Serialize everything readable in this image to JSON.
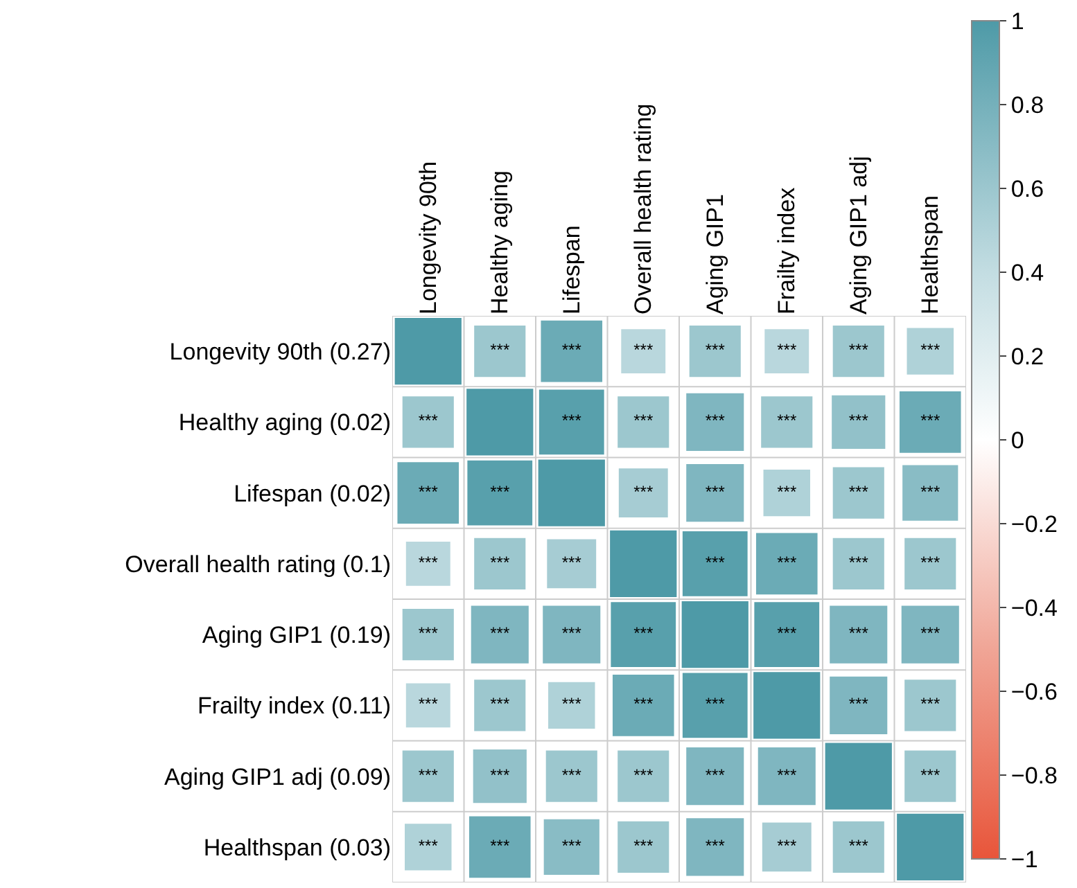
{
  "chart_data": {
    "type": "heatmap",
    "categories": [
      "Longevity 90th",
      "Healthy aging",
      "Lifespan",
      "Overall health rating",
      "Aging GIP1",
      "Frailty index",
      "Aging GIP1 adj",
      "Healthspan"
    ],
    "y_categories": [
      "Longevity 90th (0.27)",
      "Healthy aging (0.02)",
      "Lifespan (0.02)",
      "Overall health rating (0.1)",
      "Aging GIP1 (0.19)",
      "Frailty index (0.11)",
      "Aging GIP1 adj (0.09)",
      "Healthspan (0.03)"
    ],
    "cells": [
      [
        1,
        0.6,
        0.85,
        0.45,
        0.6,
        0.45,
        0.6,
        0.5
      ],
      [
        0.6,
        1,
        0.95,
        0.6,
        0.75,
        0.6,
        0.65,
        0.85
      ],
      [
        0.85,
        0.95,
        1,
        0.55,
        0.75,
        0.5,
        0.6,
        0.7
      ],
      [
        0.45,
        0.6,
        0.55,
        1,
        0.95,
        0.85,
        0.6,
        0.6
      ],
      [
        0.6,
        0.75,
        0.75,
        0.95,
        1,
        0.95,
        0.75,
        0.75
      ],
      [
        0.45,
        0.6,
        0.5,
        0.85,
        0.95,
        1,
        0.75,
        0.6
      ],
      [
        0.6,
        0.65,
        0.6,
        0.6,
        0.75,
        0.75,
        1,
        0.6
      ],
      [
        0.5,
        0.85,
        0.7,
        0.6,
        0.75,
        0.55,
        0.6,
        1
      ]
    ],
    "cell_labels": [
      [
        null,
        "***",
        "***",
        "***",
        "***",
        "***",
        "***",
        "***"
      ],
      [
        "***",
        null,
        "***",
        "***",
        "***",
        "***",
        "***",
        "***"
      ],
      [
        "***",
        "***",
        null,
        "***",
        "***",
        "***",
        "***",
        "***"
      ],
      [
        "***",
        "***",
        "***",
        null,
        "***",
        "***",
        "***",
        "***"
      ],
      [
        "***",
        "***",
        "***",
        "***",
        null,
        "***",
        "***",
        "***"
      ],
      [
        "***",
        "***",
        "***",
        "***",
        "***",
        null,
        "***",
        "***"
      ],
      [
        "***",
        "***",
        "***",
        "***",
        "***",
        "***",
        null,
        "***"
      ],
      [
        "***",
        "***",
        "***",
        "***",
        "***",
        "***",
        "***",
        null
      ]
    ],
    "clim": [
      -1,
      1
    ],
    "cticks": [
      -1,
      -0.8,
      -0.6,
      -0.4,
      -0.2,
      0,
      0.2,
      0.4,
      0.6,
      0.8,
      1
    ],
    "grid": true
  }
}
